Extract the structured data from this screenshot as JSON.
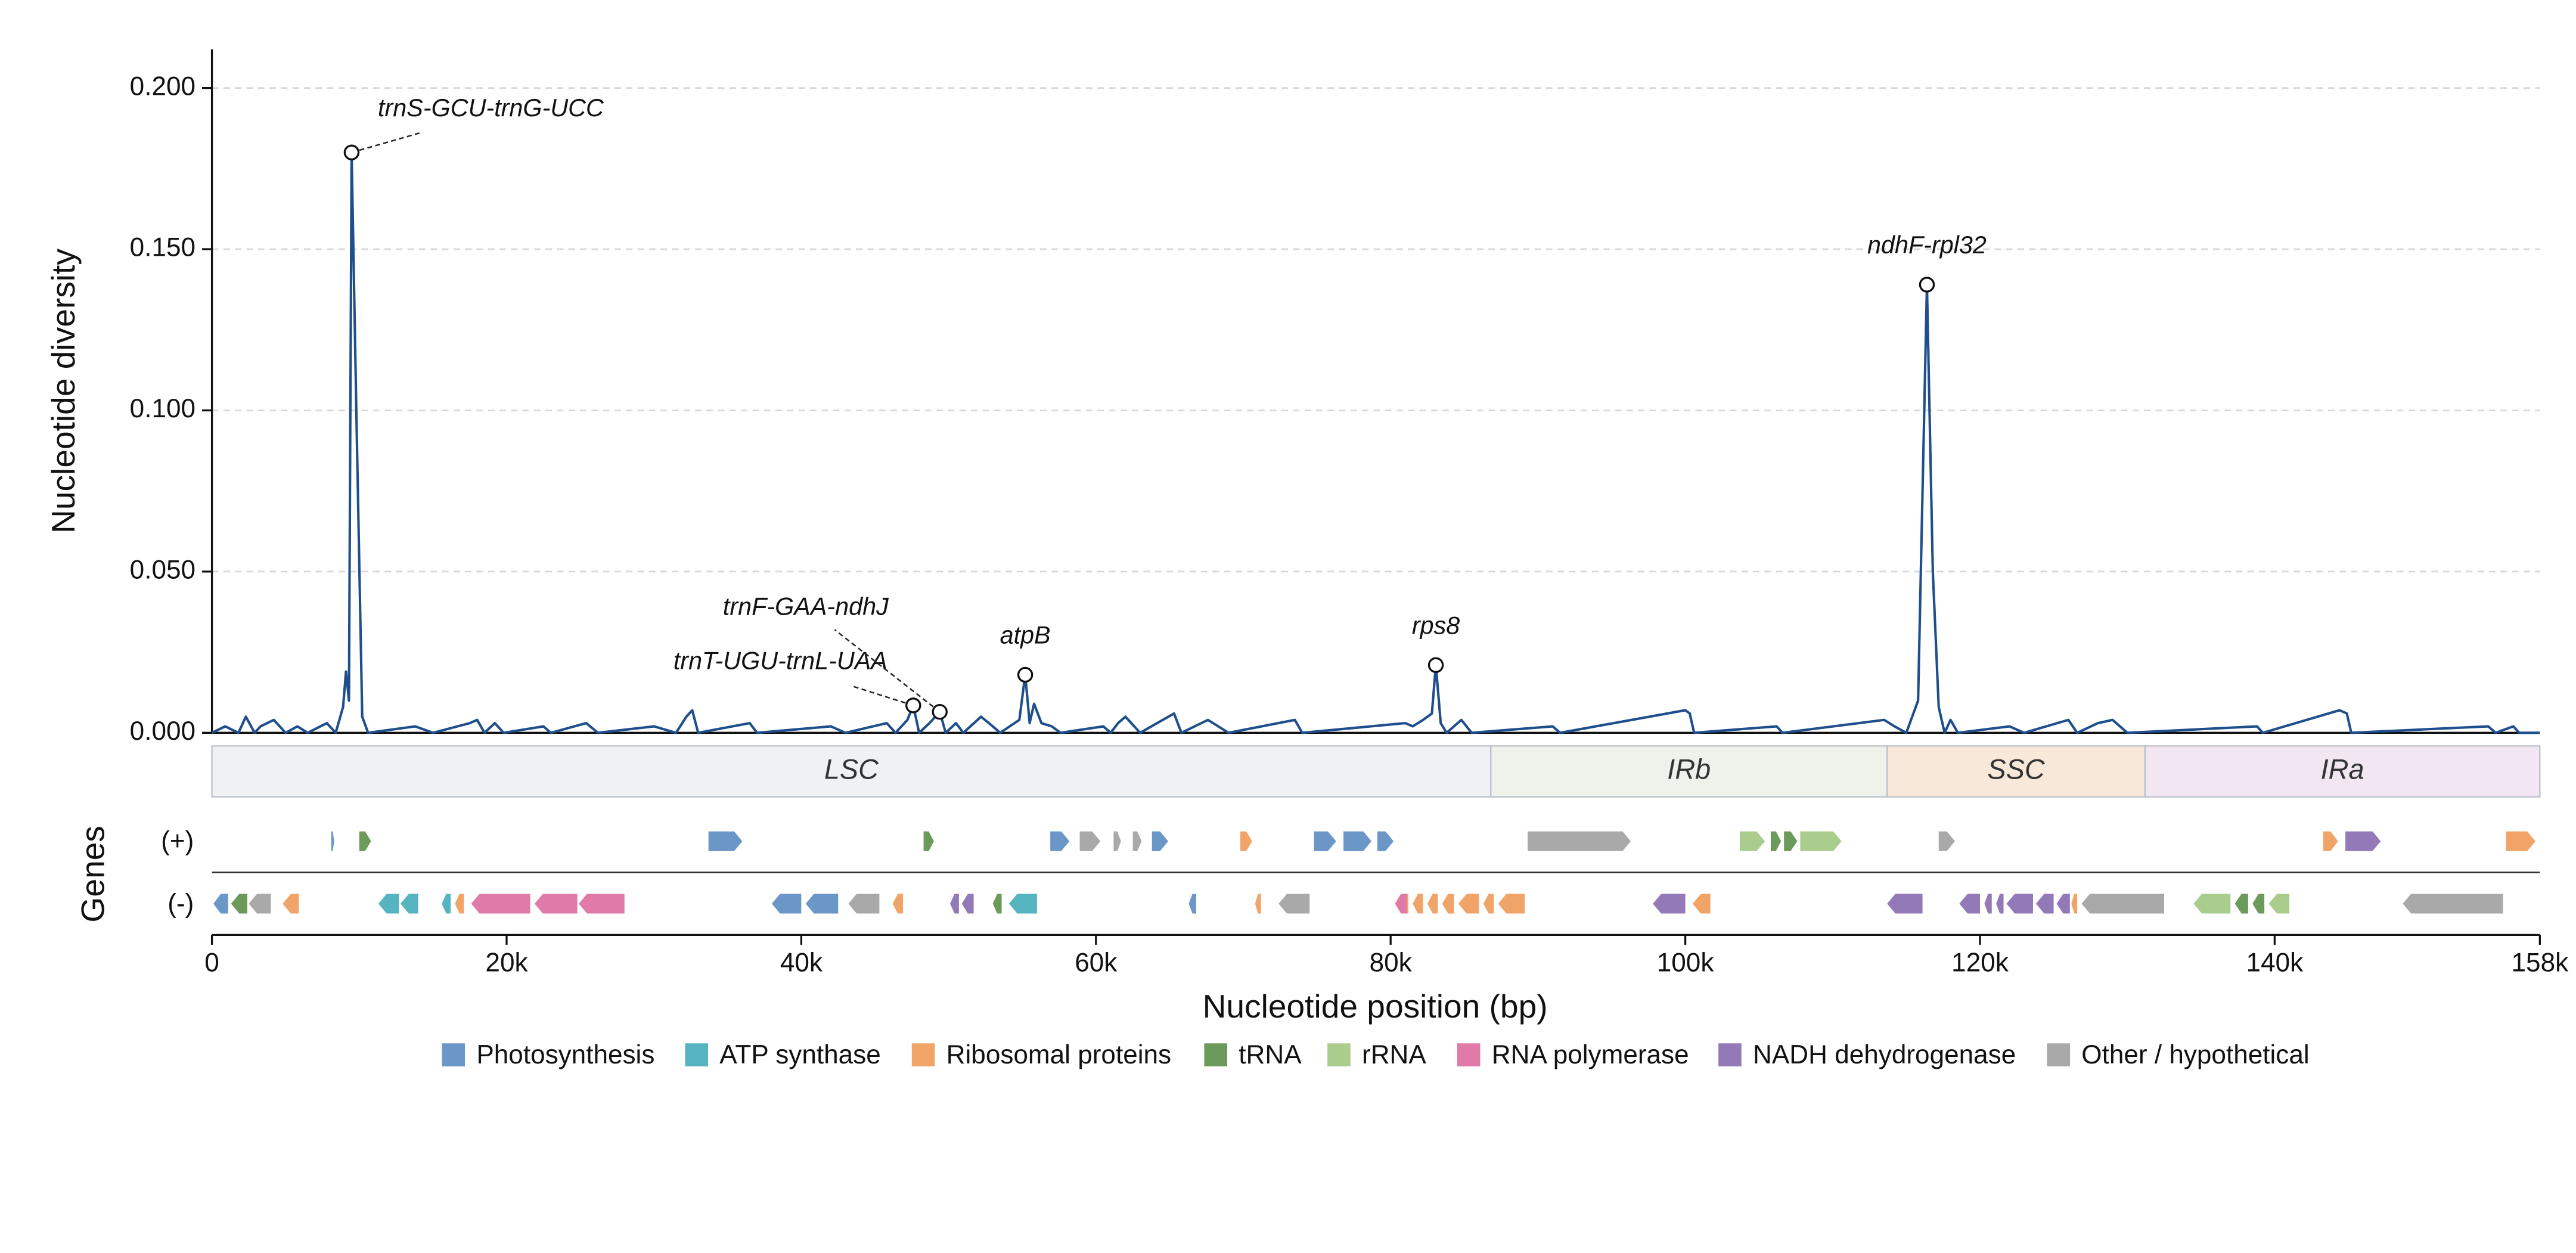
{
  "chart_data": {
    "type": "line",
    "y_label": "Nucleotide diversity",
    "x_label": "Nucleotide position (bp)",
    "track_label": "Genes",
    "strand_labels": [
      "(+)",
      "(-)"
    ],
    "color": "#1f4e8c",
    "xlim": [
      0,
      158000
    ],
    "ylim": [
      0,
      0.212
    ],
    "xticks": [
      0,
      {
        "value": 20000,
        "label": "20k"
      },
      {
        "value": 40000,
        "label": "40k"
      },
      {
        "value": 60000,
        "label": "60k"
      },
      {
        "value": 80000,
        "label": "80k"
      },
      {
        "value": 100000,
        "label": "100k"
      },
      {
        "value": 120000,
        "label": "120k"
      },
      {
        "value": 140000,
        "label": "140k"
      },
      {
        "value": 158000,
        "label": "158k"
      }
    ],
    "yticks": [
      {
        "value": 0,
        "label": "0.000"
      },
      {
        "value": 0.05,
        "label": "0.050"
      },
      {
        "value": 0.1,
        "label": "0.100"
      },
      {
        "value": 0.15,
        "label": "0.150"
      },
      {
        "value": 0.2,
        "label": "0.200"
      }
    ],
    "grid": true,
    "x": [
      0,
      900,
      1800,
      2300,
      2900,
      3300,
      4200,
      5000,
      5800,
      6500,
      7800,
      8400,
      8900,
      9100,
      9300,
      9480,
      9800,
      10200,
      10600,
      13800,
      15000,
      17500,
      18000,
      18500,
      19200,
      19800,
      22500,
      23000,
      25400,
      26200,
      30000,
      31500,
      32200,
      32600,
      33000,
      36500,
      37000,
      42000,
      43000,
      45800,
      46400,
      47200,
      47600,
      48000,
      48700,
      49400,
      49800,
      50500,
      51000,
      52200,
      53000,
      53500,
      54800,
      55200,
      55500,
      55800,
      56300,
      57000,
      57600,
      60500,
      61000,
      61500,
      62000,
      63000,
      65300,
      65800,
      67600,
      68300,
      69000,
      73500,
      74000,
      81000,
      81500,
      82200,
      82800,
      83070,
      83400,
      83800,
      84800,
      85500,
      91000,
      91500,
      100000,
      100300,
      100600,
      106200,
      106600,
      113500,
      114200,
      115000,
      115800,
      116400,
      116800,
      117200,
      117600,
      118000,
      118500,
      122000,
      123000,
      126000,
      126600,
      128000,
      129000,
      130000,
      138800,
      139200,
      144400,
      144900,
      145200,
      154500,
      155000,
      156200,
      156600,
      158000
    ],
    "values": [
      0,
      0.002,
      0,
      0.005,
      0,
      0.002,
      0.004,
      0,
      0.002,
      0,
      0.003,
      0,
      0.008,
      0.019,
      0.01,
      0.18,
      0.1,
      0.005,
      0,
      0.002,
      0,
      0.003,
      0.004,
      0,
      0.003,
      0,
      0.002,
      0,
      0.003,
      0,
      0.002,
      0,
      0.005,
      0.007,
      0,
      0.003,
      0,
      0.002,
      0,
      0.003,
      0,
      0.004,
      0.0085,
      0,
      0.003,
      0.0065,
      0,
      0.003,
      0,
      0.005,
      0.002,
      0,
      0.004,
      0.018,
      0.003,
      0.009,
      0.003,
      0.002,
      0,
      0.002,
      0,
      0.003,
      0.005,
      0,
      0.006,
      0,
      0.004,
      0.002,
      0,
      0.004,
      0,
      0.003,
      0.002,
      0.004,
      0.006,
      0.021,
      0.003,
      0,
      0.004,
      0,
      0.002,
      0,
      0.007,
      0.006,
      0,
      0.002,
      0,
      0.004,
      0.002,
      0,
      0.01,
      0.139,
      0.05,
      0.008,
      0,
      0.004,
      0,
      0.002,
      0,
      0.004,
      0,
      0.003,
      0.004,
      0,
      0.002,
      0,
      0.007,
      0.006,
      0,
      0.002,
      0,
      0.002,
      0,
      0
    ],
    "annotations": [
      {
        "text": "trnS-GCU-trnG-UCC",
        "x": 9480,
        "y": 0.18
      },
      {
        "text": "trnT-UGU-trnL-UAA",
        "x": 47600,
        "y": 0.0085
      },
      {
        "text": "trnF-GAA-ndhJ",
        "x": 49400,
        "y": 0.0065
      },
      {
        "text": "atpB",
        "x": 55200,
        "y": 0.018
      },
      {
        "text": "rps8",
        "x": 83070,
        "y": 0.021
      },
      {
        "text": "ndhF-rpl32",
        "x": 116400,
        "y": 0.139
      }
    ],
    "regions": [
      {
        "name": "LSC",
        "start": 0,
        "end": 86800,
        "color": "#eef2f5"
      },
      {
        "name": "IRb",
        "start": 86800,
        "end": 113700,
        "color": "#edf3ea"
      },
      {
        "name": "SSC",
        "start": 113700,
        "end": 131200,
        "color": "#f8e8da"
      },
      {
        "name": "IRa",
        "start": 131200,
        "end": 158000,
        "color": "#f1e6f1"
      }
    ],
    "gene_categories": [
      {
        "name": "Photosynthesis",
        "color": "#6a96c8",
        "plus": [
          [
            8100,
            8300
          ],
          [
            33700,
            36000
          ],
          [
            56900,
            58200
          ],
          [
            63800,
            64900
          ],
          [
            74800,
            76300
          ],
          [
            76800,
            78700
          ],
          [
            79100,
            80200
          ]
        ],
        "minus": [
          [
            100,
            1100
          ],
          [
            38000,
            40000
          ],
          [
            40300,
            42500
          ],
          [
            66300,
            66800
          ]
        ]
      },
      {
        "name": "ATP synthase",
        "color": "#56b4c0",
        "minus": [
          [
            11300,
            12700
          ],
          [
            12800,
            14000
          ],
          [
            15600,
            16200
          ],
          [
            54100,
            56000
          ]
        ],
        "plus": []
      },
      {
        "name": "Ribosomal proteins",
        "color": "#f0a468",
        "plus": [
          [
            69800,
            70600
          ],
          [
            143300,
            144300
          ],
          [
            155700,
            157700
          ]
        ],
        "minus": [
          [
            4800,
            5900
          ],
          [
            16500,
            17100
          ],
          [
            46200,
            46900
          ],
          [
            70800,
            71200
          ],
          [
            80500,
            81200
          ],
          [
            81500,
            82200
          ],
          [
            82500,
            83200
          ],
          [
            83500,
            84300
          ],
          [
            84600,
            86000
          ],
          [
            86300,
            87000
          ],
          [
            87300,
            89100
          ],
          [
            100500,
            101700
          ],
          [
            126200,
            126600
          ]
        ]
      },
      {
        "name": "tRNA",
        "color": "#6c9a5a",
        "plus": [
          [
            10000,
            10800
          ],
          [
            48300,
            49000
          ],
          [
            105800,
            106500
          ],
          [
            106700,
            107600
          ]
        ],
        "minus": [
          [
            1300,
            2400
          ],
          [
            53000,
            53600
          ],
          [
            137300,
            138200
          ],
          [
            138500,
            139300
          ]
        ]
      },
      {
        "name": "rRNA",
        "color": "#aacd8e",
        "plus": [
          [
            103700,
            105400
          ],
          [
            107800,
            110600
          ]
        ],
        "minus": [
          [
            134500,
            137000
          ],
          [
            139600,
            141000
          ]
        ]
      },
      {
        "name": "RNA polymerase",
        "color": "#e07aa8",
        "minus": [
          [
            17600,
            21600
          ],
          [
            21900,
            24800
          ],
          [
            24900,
            28000
          ],
          [
            80300,
            81100
          ]
        ],
        "plus": []
      },
      {
        "name": "NADH dehydrogenase",
        "color": "#9379b8",
        "plus": [
          [
            144800,
            147200
          ]
        ],
        "minus": [
          [
            50100,
            50700
          ],
          [
            50900,
            51700
          ],
          [
            97800,
            100000
          ],
          [
            113700,
            116100
          ],
          [
            118600,
            120000
          ],
          [
            120300,
            120800
          ],
          [
            121100,
            121600
          ],
          [
            121800,
            123600
          ],
          [
            123800,
            125000
          ],
          [
            125200,
            126100
          ]
        ]
      },
      {
        "name": "Other / hypothetical",
        "color": "#a9a9a9",
        "plus": [
          [
            58900,
            60300
          ],
          [
            61200,
            61700
          ],
          [
            62500,
            63100
          ],
          [
            89300,
            96300
          ],
          [
            117200,
            118300
          ]
        ],
        "minus": [
          [
            2500,
            4000
          ],
          [
            43200,
            45300
          ],
          [
            72400,
            74500
          ],
          [
            126900,
            132500
          ],
          [
            148700,
            155500
          ]
        ]
      }
    ]
  }
}
